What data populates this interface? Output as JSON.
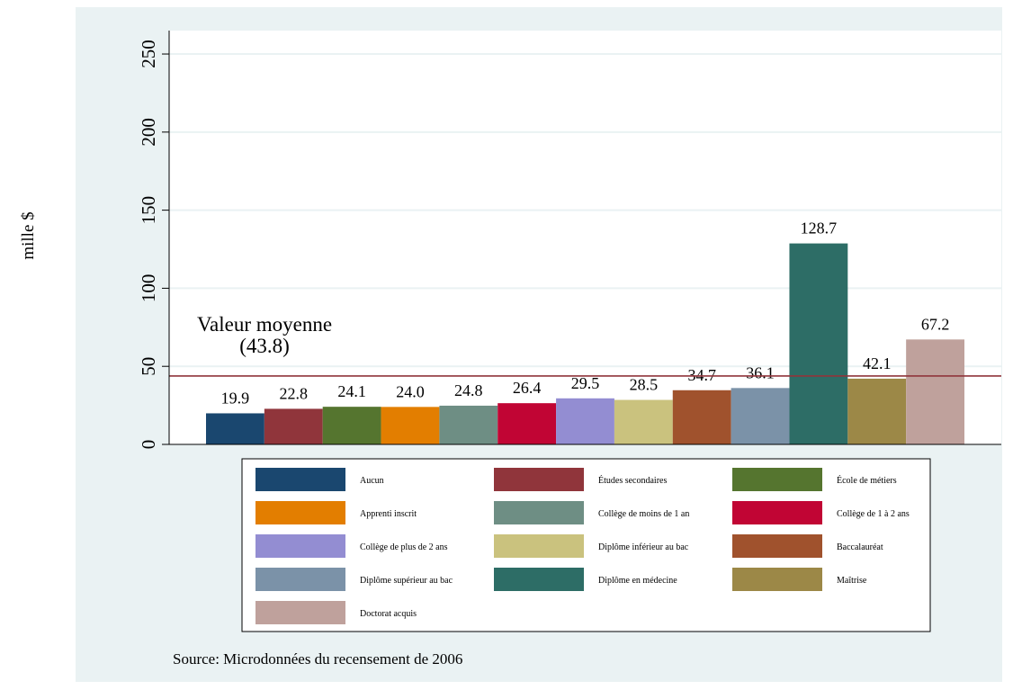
{
  "chart_data": {
    "type": "bar",
    "ylabel": "mille $",
    "ylim": [
      0,
      265
    ],
    "y_ticks": [
      0,
      50,
      100,
      150,
      200,
      250
    ],
    "grid": true,
    "categories": [
      "Aucun",
      "Études secondaires",
      "École de métiers",
      "Apprenti inscrit",
      "Collège de moins de 1 an",
      "Collège de 1 à 2 ans",
      "Collège de plus de 2 ans",
      "Diplôme inférieur au bac",
      "Baccalauréat",
      "Diplôme supérieur au bac",
      "Diplôme en médecine",
      "Maîtrise",
      "Doctorat acquis"
    ],
    "values": [
      19.9,
      22.8,
      24.1,
      24.0,
      24.8,
      26.4,
      29.5,
      28.5,
      34.7,
      36.1,
      128.7,
      42.1,
      67.2
    ],
    "data_labels": [
      "19.9",
      "22.8",
      "24.1",
      "24.0",
      "24.8",
      "26.4",
      "29.5",
      "28.5",
      "34.7",
      "36.1",
      "128.7",
      "42.1",
      "67.2"
    ],
    "colors": [
      "#1a476f",
      "#90353b",
      "#55752f",
      "#e37e00",
      "#6e8e84",
      "#c10534",
      "#938dd2",
      "#cac27e",
      "#a0522d",
      "#7b92a8",
      "#2d6d66",
      "#9c8847",
      "#bfa19c"
    ],
    "reference_line": {
      "value": 43.8,
      "label_line1": "Valeur moyenne",
      "label_line2": "(43.8)",
      "color": "#90353b"
    },
    "legend": {
      "position": "bottom",
      "columns": 3
    },
    "note": "Source: Microdonnées du recensement de 2006"
  }
}
